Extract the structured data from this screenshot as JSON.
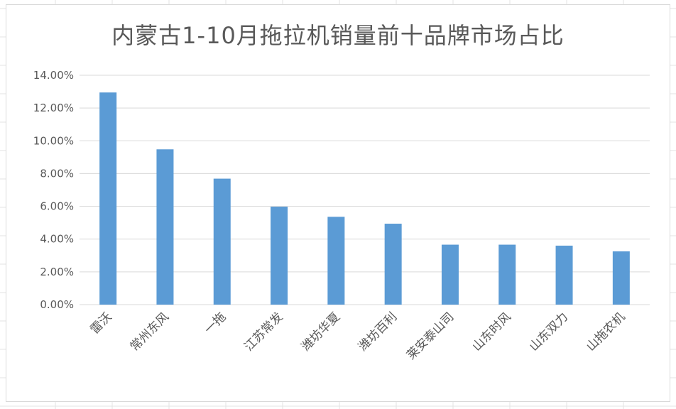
{
  "chart_data": {
    "type": "bar",
    "title": "内蒙古1-10月拖拉机销量前十品牌市场占比",
    "categories": [
      "雷沃",
      "常州东风",
      "一拖",
      "江苏常发",
      "潍坊华夏",
      "潍坊百利",
      "莱安泰山司",
      "山东时风",
      "山东双力",
      "山拖农机"
    ],
    "values": [
      0.1295,
      0.0948,
      0.0769,
      0.0598,
      0.0536,
      0.0494,
      0.0366,
      0.0366,
      0.036,
      0.0325
    ],
    "yticks": [
      "0.00%",
      "2.00%",
      "4.00%",
      "6.00%",
      "8.00%",
      "10.00%",
      "12.00%",
      "14.00%"
    ],
    "ylim": [
      0,
      0.14
    ],
    "grid": true,
    "legend": "none",
    "colors": {
      "bar": "#5b9bd5",
      "grid": "#d9d9d9",
      "text": "#595959"
    }
  }
}
